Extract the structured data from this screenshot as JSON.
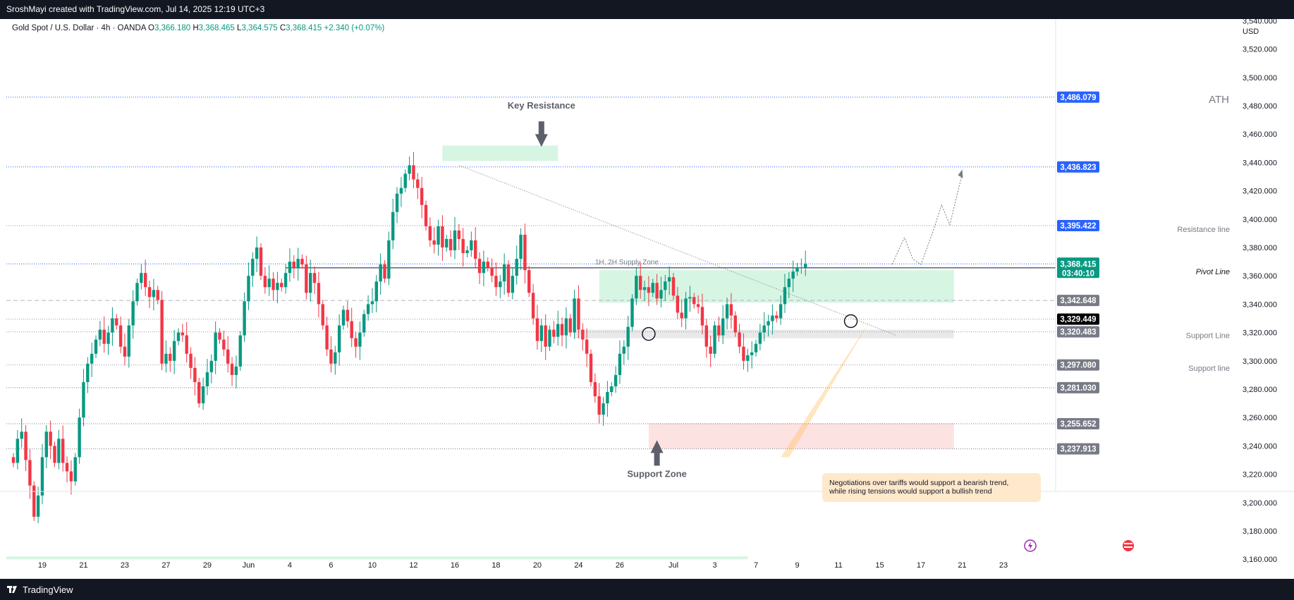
{
  "header": {
    "credit": "SroshMayi created with TradingView.com, Jul 14, 2025 12:19 UTC+3",
    "symbol": "Gold Spot / U.S. Dollar · 4h · OANDA",
    "o_label": "O",
    "o": "3,366.180",
    "h_label": "H",
    "h": "3,368.465",
    "l_label": "L",
    "l": "3,364.575",
    "c_label": "C",
    "c": "3,368.415",
    "change": "+2.340 (+0.07%)"
  },
  "footer": {
    "brand": "TradingView"
  },
  "chart_data": {
    "type": "candlestick",
    "instrument": "Gold Spot / U.S. Dollar",
    "timeframe": "4h",
    "currency": "USD",
    "ylim": [
      3160,
      3540
    ],
    "y_ticks": [
      3160,
      3180,
      3200,
      3220,
      3240,
      3260,
      3280,
      3300,
      3320,
      3340,
      3360,
      3380,
      3400,
      3420,
      3440,
      3460,
      3480,
      3500,
      3520,
      3540
    ],
    "y_tick_labels": [
      "3,160.000",
      "3,180.000",
      "3,200.000",
      "3,220.000",
      "3,240.000",
      "3,260.000",
      "3,280.000",
      "3,300.000",
      "3,320.000",
      "3,340.000",
      "3,360.000",
      "3,380.000",
      "3,400.000",
      "3,420.000",
      "3,440.000",
      "3,460.000",
      "3,480.000",
      "3,500.000",
      "3,520.000",
      "3,540.000"
    ],
    "x_ticks": [
      {
        "bar": 7,
        "label": "19"
      },
      {
        "bar": 17,
        "label": "21"
      },
      {
        "bar": 27,
        "label": "23"
      },
      {
        "bar": 37,
        "label": "27"
      },
      {
        "bar": 47,
        "label": "29"
      },
      {
        "bar": 57,
        "label": "Jun"
      },
      {
        "bar": 67,
        "label": "4"
      },
      {
        "bar": 77,
        "label": "6"
      },
      {
        "bar": 87,
        "label": "10"
      },
      {
        "bar": 97,
        "label": "12"
      },
      {
        "bar": 107,
        "label": "16"
      },
      {
        "bar": 117,
        "label": "18"
      },
      {
        "bar": 127,
        "label": "20"
      },
      {
        "bar": 137,
        "label": "24"
      },
      {
        "bar": 147,
        "label": "26"
      },
      {
        "bar": 160,
        "label": "Jul"
      },
      {
        "bar": 170,
        "label": "3"
      },
      {
        "bar": 180,
        "label": "7"
      },
      {
        "bar": 190,
        "label": "9"
      },
      {
        "bar": 200,
        "label": "11"
      },
      {
        "bar": 210,
        "label": "15"
      },
      {
        "bar": 220,
        "label": "17"
      },
      {
        "bar": 230,
        "label": "21"
      },
      {
        "bar": 240,
        "label": "23"
      }
    ],
    "closes": [
      3228,
      3245,
      3250,
      3230,
      3212,
      3190,
      3205,
      3232,
      3250,
      3240,
      3228,
      3245,
      3228,
      3222,
      3215,
      3232,
      3260,
      3285,
      3298,
      3305,
      3315,
      3322,
      3312,
      3320,
      3330,
      3325,
      3310,
      3303,
      3325,
      3342,
      3355,
      3362,
      3352,
      3345,
      3350,
      3343,
      3298,
      3305,
      3300,
      3314,
      3320,
      3318,
      3305,
      3295,
      3285,
      3270,
      3282,
      3292,
      3300,
      3320,
      3315,
      3308,
      3298,
      3290,
      3296,
      3318,
      3342,
      3360,
      3372,
      3380,
      3360,
      3352,
      3358,
      3350,
      3355,
      3352,
      3362,
      3370,
      3366,
      3372,
      3368,
      3348,
      3362,
      3355,
      3340,
      3325,
      3308,
      3298,
      3306,
      3325,
      3336,
      3328,
      3316,
      3310,
      3320,
      3333,
      3340,
      3342,
      3356,
      3368,
      3358,
      3385,
      3405,
      3418,
      3422,
      3432,
      3438,
      3428,
      3422,
      3410,
      3395,
      3385,
      3382,
      3395,
      3380,
      3386,
      3378,
      3392,
      3386,
      3376,
      3378,
      3385,
      3372,
      3362,
      3370,
      3366,
      3360,
      3352,
      3356,
      3368,
      3348,
      3360,
      3372,
      3389,
      3364,
      3348,
      3330,
      3314,
      3325,
      3310,
      3322,
      3317,
      3326,
      3318,
      3330,
      3320,
      3344,
      3322,
      3315,
      3305,
      3285,
      3275,
      3262,
      3270,
      3278,
      3282,
      3290,
      3305,
      3310,
      3324,
      3344,
      3360,
      3350,
      3352,
      3348,
      3355,
      3344,
      3350,
      3356,
      3359,
      3346,
      3334,
      3330,
      3344,
      3345,
      3340,
      3338,
      3325,
      3310,
      3305,
      3325,
      3318,
      3330,
      3340,
      3332,
      3320,
      3310,
      3300,
      3304,
      3306,
      3312,
      3320,
      3325,
      3328,
      3332,
      3330,
      3340,
      3352,
      3358,
      3363,
      3366,
      3366,
      3368.415
    ],
    "current_price": "3,368.415",
    "countdown": "03:40:10",
    "price_tags": [
      {
        "value": 3486.079,
        "label": "3,486.079",
        "color": "#2962ff"
      },
      {
        "value": 3436.823,
        "label": "3,436.823",
        "color": "#2962ff"
      },
      {
        "value": 3395.422,
        "label": "3,395.422",
        "color": "#2962ff"
      },
      {
        "value": 3365.635,
        "label": "3,365.635",
        "color": "#000000"
      },
      {
        "value": 3342.648,
        "label": "3,342.648",
        "color": "#787b86"
      },
      {
        "value": 3329.449,
        "label": "3,329.449",
        "color": "#000000"
      },
      {
        "value": 3320.483,
        "label": "3,320.483",
        "color": "#787b86"
      },
      {
        "value": 3297.08,
        "label": "3,297.080",
        "color": "#787b86"
      },
      {
        "value": 3281.03,
        "label": "3,281.030",
        "color": "#787b86"
      },
      {
        "value": 3255.652,
        "label": "3,255.652",
        "color": "#787b86"
      },
      {
        "value": 3237.913,
        "label": "3,237.913",
        "color": "#787b86"
      }
    ],
    "annotations": {
      "ath": "ATH",
      "key_resistance": "Key Resistance",
      "support_zone": "Support Zone",
      "supply_zone": "1H, 2H Supply Zone",
      "pivot_line": "Pivot Line",
      "resistance_line": "Resistance line",
      "support_line_1": "Support Line",
      "support_line_2": "Support line",
      "note_line1": "Negotiations over tariffs would support a bearish trend,",
      "note_line2": "while rising tensions would support a bullish trend"
    },
    "colors": {
      "up": "#089981",
      "down": "#f23645",
      "tag_blue": "#2962ff",
      "green_zone": "#d7f5e3",
      "red_zone": "#fde2e2",
      "grey_zone": "#e9e9ea"
    }
  }
}
